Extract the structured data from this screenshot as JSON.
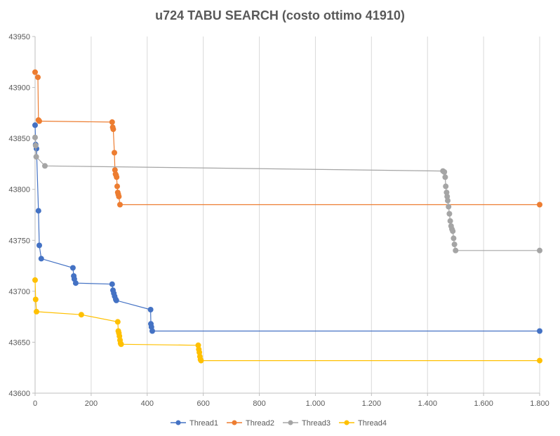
{
  "chart_data": {
    "type": "line",
    "title": "u724 TABU SEARCH (costo ottimo  41910)",
    "xlabel": "",
    "ylabel": "",
    "xlim": [
      0,
      1800
    ],
    "ylim": [
      43600,
      43950
    ],
    "x_ticks": [
      0,
      200,
      400,
      600,
      800,
      1000,
      1200,
      1400,
      1600,
      1800
    ],
    "x_tick_labels": [
      "0",
      "200",
      "400",
      "600",
      "800",
      "1.000",
      "1.200",
      "1.400",
      "1.600",
      "1.800"
    ],
    "y_ticks": [
      43600,
      43650,
      43700,
      43750,
      43800,
      43850,
      43900,
      43950
    ],
    "y_tick_labels": [
      "43600",
      "43650",
      "43700",
      "43750",
      "43800",
      "43850",
      "43900",
      "43950"
    ],
    "grid": "vertical",
    "legend": "bottom",
    "series": [
      {
        "name": "Thread1",
        "color": "#4472C4",
        "points": [
          [
            0,
            43863
          ],
          [
            2,
            43844
          ],
          [
            5,
            43840
          ],
          [
            12,
            43779
          ],
          [
            15,
            43745
          ],
          [
            22,
            43732
          ],
          [
            135,
            43723
          ],
          [
            138,
            43715
          ],
          [
            140,
            43712
          ],
          [
            145,
            43708
          ],
          [
            275,
            43707
          ],
          [
            278,
            43701
          ],
          [
            281,
            43698
          ],
          [
            284,
            43695
          ],
          [
            288,
            43692
          ],
          [
            290,
            43691
          ],
          [
            412,
            43682
          ],
          [
            413,
            43668
          ],
          [
            415,
            43665
          ],
          [
            418,
            43661
          ],
          [
            1800,
            43661
          ]
        ]
      },
      {
        "name": "Thread2",
        "color": "#ED7D31",
        "points": [
          [
            0,
            43915
          ],
          [
            10,
            43910
          ],
          [
            12,
            43868
          ],
          [
            15,
            43867
          ],
          [
            275,
            43866
          ],
          [
            277,
            43861
          ],
          [
            279,
            43859
          ],
          [
            283,
            43836
          ],
          [
            285,
            43819
          ],
          [
            287,
            43815
          ],
          [
            289,
            43814
          ],
          [
            291,
            43812
          ],
          [
            293,
            43803
          ],
          [
            295,
            43797
          ],
          [
            297,
            43795
          ],
          [
            299,
            43793
          ],
          [
            303,
            43785
          ],
          [
            1800,
            43785
          ]
        ]
      },
      {
        "name": "Thread3",
        "color": "#A5A5A5",
        "points": [
          [
            0,
            43851
          ],
          [
            2,
            43843
          ],
          [
            4,
            43832
          ],
          [
            35,
            43823
          ],
          [
            1455,
            43818
          ],
          [
            1460,
            43817
          ],
          [
            1463,
            43812
          ],
          [
            1465,
            43803
          ],
          [
            1468,
            43797
          ],
          [
            1470,
            43793
          ],
          [
            1472,
            43789
          ],
          [
            1475,
            43783
          ],
          [
            1478,
            43776
          ],
          [
            1481,
            43769
          ],
          [
            1484,
            43764
          ],
          [
            1487,
            43761
          ],
          [
            1490,
            43759
          ],
          [
            1493,
            43752
          ],
          [
            1496,
            43746
          ],
          [
            1500,
            43740
          ],
          [
            1800,
            43740
          ]
        ]
      },
      {
        "name": "Thread4",
        "color": "#FFC000",
        "points": [
          [
            0,
            43711
          ],
          [
            2,
            43692
          ],
          [
            5,
            43680
          ],
          [
            165,
            43677
          ],
          [
            295,
            43670
          ],
          [
            297,
            43661
          ],
          [
            299,
            43659
          ],
          [
            301,
            43656
          ],
          [
            303,
            43652
          ],
          [
            305,
            43649
          ],
          [
            307,
            43648
          ],
          [
            582,
            43647
          ],
          [
            584,
            43643
          ],
          [
            586,
            43640
          ],
          [
            588,
            43636
          ],
          [
            590,
            43633
          ],
          [
            592,
            43632
          ],
          [
            1800,
            43632
          ]
        ]
      }
    ]
  }
}
